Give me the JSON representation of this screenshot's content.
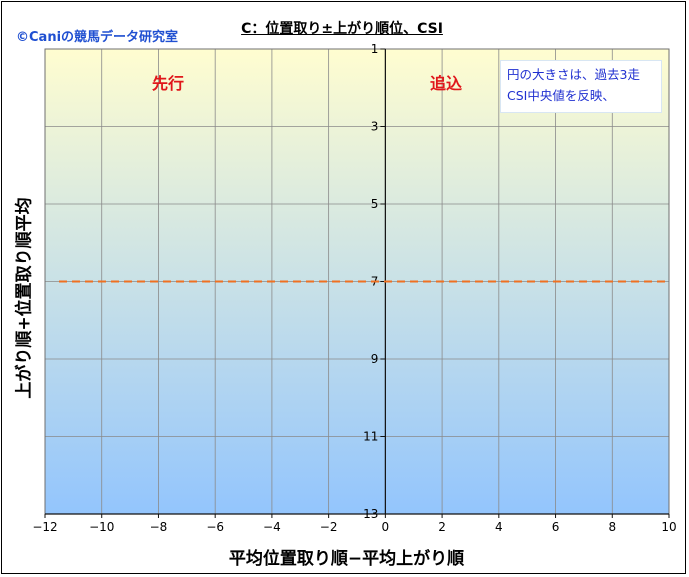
{
  "chart_data": {
    "type": "scatter",
    "title": "C：位置取り±上がり順位、CSI",
    "copyright": "©Caniの競馬データ研究室",
    "xlabel": "平均位置取り順−平均上がり順",
    "ylabel": "上がり順+位置取り順平均",
    "xlim": [
      -12,
      10
    ],
    "x_ticks": [
      -12,
      -10,
      -8,
      -6,
      -4,
      -2,
      0,
      2,
      4,
      6,
      8,
      10
    ],
    "ylim": [
      1,
      13
    ],
    "y_reversed": true,
    "y_ticks": [
      1,
      3,
      5,
      7,
      9,
      11,
      13
    ],
    "grid": true,
    "reference_line": {
      "y": 7,
      "style": "dashed",
      "color": "#f07020"
    },
    "quadrant_labels": {
      "left": "先行",
      "right": "追込"
    },
    "note_lines": [
      "円の大きさは、過去3走",
      "CSI中央値を反映、"
    ],
    "points": [],
    "colors": {
      "text_accent": "#e0171b",
      "note_text": "#1f2fd0",
      "copyright": "#1f4fd1",
      "gradient_top": "#fffdd0",
      "gradient_bottom": "#93c5fd",
      "gridline": "#8a8a8a"
    }
  }
}
